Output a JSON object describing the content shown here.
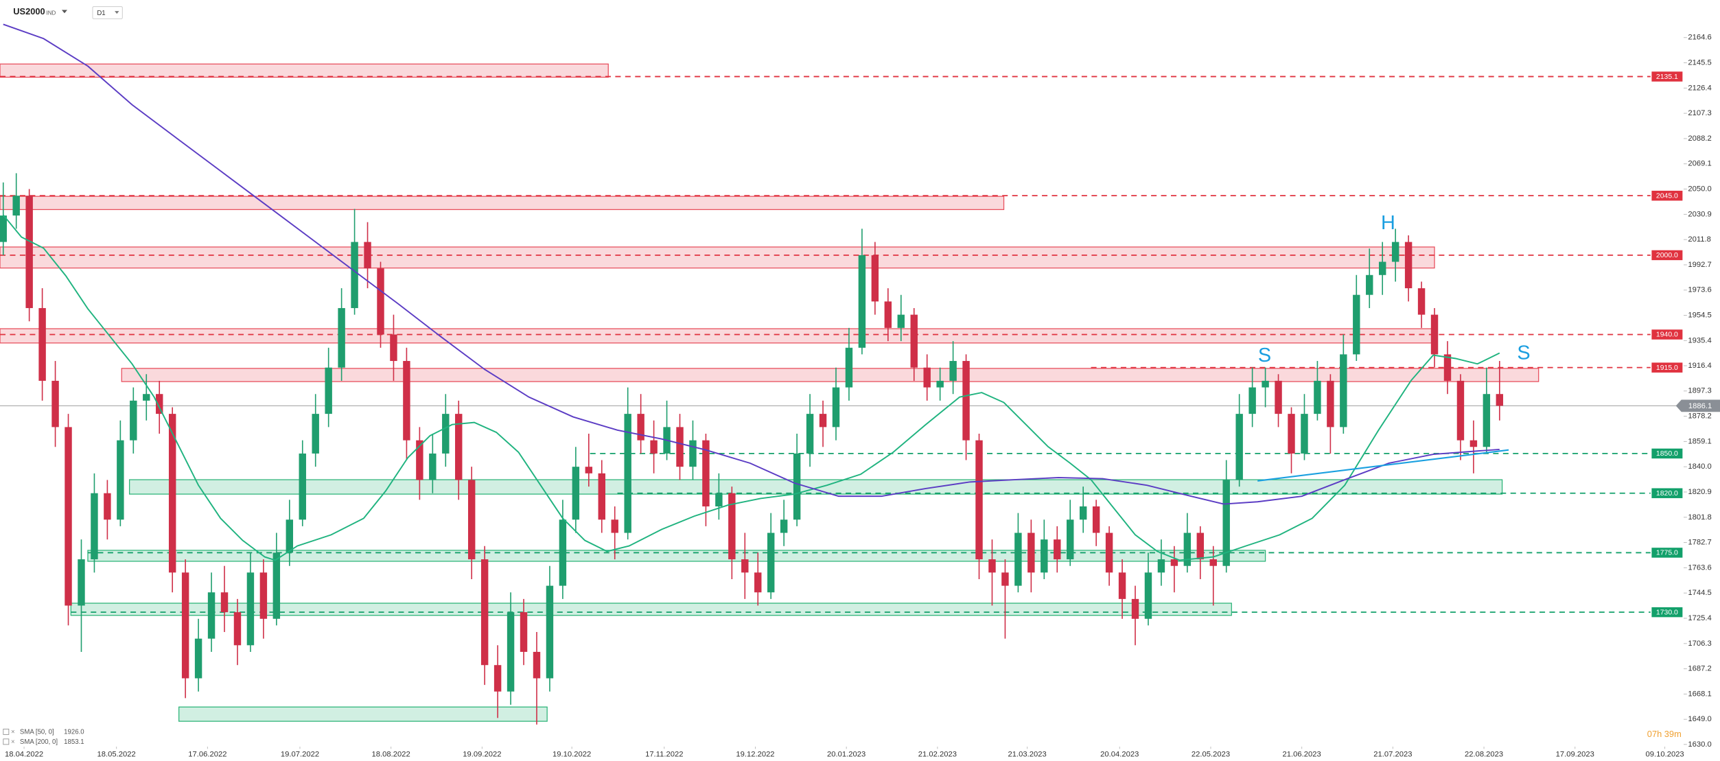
{
  "header": {
    "symbol": "US2000",
    "market": "IND",
    "timeframe": "D1"
  },
  "chart_data": {
    "type": "candlestick",
    "xlim": [
      -0.25,
      129.4
    ],
    "xticks": [
      {
        "value": 1.6,
        "label": "18.04.2022"
      },
      {
        "value": 8.7,
        "label": "18.05.2022"
      },
      {
        "value": 15.7,
        "label": "17.06.2022"
      },
      {
        "value": 22.8,
        "label": "19.07.2022"
      },
      {
        "value": 29.8,
        "label": "18.08.2022"
      },
      {
        "value": 36.8,
        "label": "19.09.2022"
      },
      {
        "value": 43.7,
        "label": "19.10.2022"
      },
      {
        "value": 50.8,
        "label": "17.11.2022"
      },
      {
        "value": 57.8,
        "label": "19.12.2022"
      },
      {
        "value": 64.8,
        "label": "20.01.2023"
      },
      {
        "value": 71.8,
        "label": "21.02.2023"
      },
      {
        "value": 78.7,
        "label": "21.03.2023"
      },
      {
        "value": 85.8,
        "label": "20.04.2023"
      },
      {
        "value": 92.8,
        "label": "22.05.2023"
      },
      {
        "value": 99.8,
        "label": "21.06.2023"
      },
      {
        "value": 106.8,
        "label": "21.07.2023"
      },
      {
        "value": 113.8,
        "label": "22.08.2023"
      },
      {
        "value": 120.8,
        "label": "17.09.2023"
      },
      {
        "value": 127.7,
        "label": "09.10.2023"
      }
    ],
    "ylim": [
      1628.3,
      2193.0
    ],
    "yticks": [
      {
        "value": 1630,
        "label": "1630.0"
      },
      {
        "value": 1649,
        "label": "1649.0"
      },
      1668.1,
      1687.2,
      1706.3,
      1725.4,
      1744.5,
      1763.6,
      1782.7,
      1801.8,
      1820.9,
      {
        "value": 1840,
        "label": "1840.0"
      },
      1859.1,
      1878.2,
      1897.3,
      1916.4,
      1935.4,
      1954.5,
      1973.6,
      1992.7,
      2011.8,
      2030.9,
      {
        "value": 2050,
        "label": "2050.0"
      },
      2069.1,
      2088.2,
      2107.3,
      2126.4,
      2145.5,
      2164.6
    ],
    "colors": {
      "up": "#1f9e6e",
      "down": "#cf2f48"
    },
    "candles": [
      [
        2010,
        2055,
        2000,
        2030
      ],
      [
        2030,
        2062,
        2020,
        2045
      ],
      [
        2045,
        2050,
        1950,
        1960
      ],
      [
        1960,
        1975,
        1890,
        1905
      ],
      [
        1905,
        1920,
        1855,
        1870
      ],
      [
        1870,
        1880,
        1720,
        1735
      ],
      [
        1735,
        1785,
        1700,
        1770
      ],
      [
        1770,
        1835,
        1760,
        1820
      ],
      [
        1820,
        1830,
        1785,
        1800
      ],
      [
        1800,
        1875,
        1795,
        1860
      ],
      [
        1860,
        1900,
        1850,
        1890
      ],
      [
        1890,
        1910,
        1875,
        1895
      ],
      [
        1895,
        1905,
        1865,
        1880
      ],
      [
        1880,
        1885,
        1745,
        1760
      ],
      [
        1760,
        1770,
        1665,
        1680
      ],
      [
        1680,
        1725,
        1670,
        1710
      ],
      [
        1710,
        1760,
        1700,
        1745
      ],
      [
        1745,
        1765,
        1715,
        1730
      ],
      [
        1730,
        1740,
        1690,
        1705
      ],
      [
        1705,
        1775,
        1700,
        1760
      ],
      [
        1760,
        1770,
        1710,
        1725
      ],
      [
        1725,
        1790,
        1720,
        1775
      ],
      [
        1775,
        1815,
        1765,
        1800
      ],
      [
        1800,
        1860,
        1795,
        1850
      ],
      [
        1850,
        1895,
        1840,
        1880
      ],
      [
        1880,
        1930,
        1870,
        1915
      ],
      [
        1915,
        1975,
        1905,
        1960
      ],
      [
        1960,
        2035,
        1955,
        2010
      ],
      [
        2010,
        2025,
        1975,
        1990
      ],
      [
        1990,
        1995,
        1930,
        1940
      ],
      [
        1940,
        1955,
        1905,
        1920
      ],
      [
        1920,
        1930,
        1845,
        1860
      ],
      [
        1860,
        1870,
        1815,
        1830
      ],
      [
        1830,
        1865,
        1820,
        1850
      ],
      [
        1850,
        1895,
        1840,
        1880
      ],
      [
        1880,
        1890,
        1815,
        1830
      ],
      [
        1830,
        1840,
        1755,
        1770
      ],
      [
        1770,
        1780,
        1675,
        1690
      ],
      [
        1690,
        1705,
        1650,
        1670
      ],
      [
        1670,
        1745,
        1660,
        1730
      ],
      [
        1730,
        1740,
        1690,
        1700
      ],
      [
        1700,
        1715,
        1645,
        1680
      ],
      [
        1680,
        1765,
        1670,
        1750
      ],
      [
        1750,
        1815,
        1740,
        1800
      ],
      [
        1800,
        1855,
        1790,
        1840
      ],
      [
        1840,
        1865,
        1825,
        1835
      ],
      [
        1835,
        1845,
        1790,
        1800
      ],
      [
        1800,
        1810,
        1770,
        1790
      ],
      [
        1790,
        1900,
        1785,
        1880
      ],
      [
        1880,
        1895,
        1850,
        1860
      ],
      [
        1860,
        1875,
        1835,
        1850
      ],
      [
        1850,
        1890,
        1845,
        1870
      ],
      [
        1870,
        1880,
        1830,
        1840
      ],
      [
        1840,
        1875,
        1830,
        1860
      ],
      [
        1860,
        1865,
        1795,
        1810
      ],
      [
        1810,
        1835,
        1800,
        1820
      ],
      [
        1820,
        1825,
        1755,
        1770
      ],
      [
        1770,
        1790,
        1740,
        1760
      ],
      [
        1760,
        1775,
        1735,
        1745
      ],
      [
        1745,
        1805,
        1740,
        1790
      ],
      [
        1790,
        1815,
        1780,
        1800
      ],
      [
        1800,
        1865,
        1795,
        1850
      ],
      [
        1850,
        1895,
        1840,
        1880
      ],
      [
        1880,
        1890,
        1855,
        1870
      ],
      [
        1870,
        1915,
        1860,
        1900
      ],
      [
        1900,
        1945,
        1890,
        1930
      ],
      [
        1930,
        2020,
        1925,
        2000
      ],
      [
        2000,
        2010,
        1955,
        1965
      ],
      [
        1965,
        1975,
        1935,
        1945
      ],
      [
        1945,
        1970,
        1935,
        1955
      ],
      [
        1955,
        1960,
        1905,
        1915
      ],
      [
        1915,
        1925,
        1890,
        1900
      ],
      [
        1900,
        1915,
        1890,
        1905
      ],
      [
        1905,
        1935,
        1895,
        1920
      ],
      [
        1920,
        1925,
        1845,
        1860
      ],
      [
        1860,
        1865,
        1755,
        1770
      ],
      [
        1770,
        1785,
        1735,
        1760
      ],
      [
        1760,
        1770,
        1710,
        1750
      ],
      [
        1750,
        1805,
        1745,
        1790
      ],
      [
        1790,
        1800,
        1745,
        1760
      ],
      [
        1760,
        1800,
        1755,
        1785
      ],
      [
        1785,
        1795,
        1760,
        1770
      ],
      [
        1770,
        1815,
        1765,
        1800
      ],
      [
        1800,
        1825,
        1790,
        1810
      ],
      [
        1810,
        1815,
        1780,
        1790
      ],
      [
        1790,
        1795,
        1750,
        1760
      ],
      [
        1760,
        1770,
        1725,
        1740
      ],
      [
        1740,
        1750,
        1705,
        1725
      ],
      [
        1725,
        1775,
        1720,
        1760
      ],
      [
        1760,
        1785,
        1750,
        1770
      ],
      [
        1770,
        1780,
        1745,
        1765
      ],
      [
        1765,
        1805,
        1760,
        1790
      ],
      [
        1790,
        1795,
        1755,
        1770
      ],
      [
        1770,
        1780,
        1735,
        1765
      ],
      [
        1765,
        1845,
        1760,
        1830
      ],
      [
        1830,
        1895,
        1825,
        1880
      ],
      [
        1880,
        1915,
        1870,
        1900
      ],
      [
        1900,
        1915,
        1885,
        1905
      ],
      [
        1905,
        1910,
        1870,
        1880
      ],
      [
        1880,
        1885,
        1835,
        1850
      ],
      [
        1850,
        1895,
        1845,
        1880
      ],
      [
        1880,
        1920,
        1875,
        1905
      ],
      [
        1905,
        1910,
        1850,
        1870
      ],
      [
        1870,
        1940,
        1865,
        1925
      ],
      [
        1925,
        1985,
        1920,
        1970
      ],
      [
        1970,
        2005,
        1960,
        1985
      ],
      [
        1985,
        2010,
        1970,
        1995
      ],
      [
        1995,
        2020,
        1980,
        2010
      ],
      [
        2010,
        2015,
        1965,
        1975
      ],
      [
        1975,
        1980,
        1945,
        1955
      ],
      [
        1955,
        1960,
        1915,
        1925
      ],
      [
        1925,
        1935,
        1895,
        1905
      ],
      [
        1905,
        1910,
        1845,
        1860
      ],
      [
        1860,
        1875,
        1835,
        1855
      ],
      [
        1855,
        1915,
        1850,
        1895
      ],
      [
        1895,
        1920,
        1875,
        1886.1
      ]
    ],
    "sma": [
      {
        "name": "SMA [50, 0]",
        "color": "#1fb37f",
        "last": {
          "value": 1926,
          "label": "1926.0"
        },
        "x": [
          0,
          1.4,
          3.1,
          4.8,
          6.5,
          8.2,
          9.9,
          11.6,
          13.3,
          15.0,
          16.7,
          18.4,
          20.1,
          20.9,
          22.6,
          25.2,
          27.7,
          29.4,
          31.1,
          32.8,
          34.5,
          36.2,
          37.9,
          39.6,
          41.3,
          43.0,
          44.7,
          46.4,
          48.1,
          50.6,
          53.1,
          55.7,
          58.2,
          60.8,
          63.3,
          65.9,
          68.4,
          70.9,
          73.5,
          75.2,
          76.9,
          78.6,
          80.3,
          82.0,
          83.6,
          85.3,
          87.0,
          88.7,
          90.4,
          93.0,
          95.5,
          98.1,
          100.6,
          103.1,
          105.7,
          108.2,
          109.9,
          111.6,
          113.3,
          115.0
        ],
        "values": [
          2030.4,
          2013.7,
          2005.3,
          1984.5,
          1959.5,
          1938.6,
          1917.8,
          1892.7,
          1859.4,
          1826.0,
          1801.0,
          1784.3,
          1771.8,
          1769.3,
          1780.1,
          1788.5,
          1801.0,
          1821.8,
          1846.9,
          1863.5,
          1871.9,
          1873.5,
          1866.0,
          1851.0,
          1826.0,
          1801.0,
          1784.3,
          1776.0,
          1780.1,
          1792.6,
          1802.6,
          1811.0,
          1816.0,
          1819.3,
          1826.0,
          1834.3,
          1851.0,
          1871.9,
          1892.7,
          1896.1,
          1888.6,
          1871.9,
          1855.2,
          1842.7,
          1830.2,
          1809.3,
          1788.5,
          1776.0,
          1769.3,
          1771.8,
          1780.1,
          1788.5,
          1801.0,
          1826.0,
          1867.7,
          1905.2,
          1924.4,
          1921.9,
          1917.8,
          1926.0
        ]
      },
      {
        "name": "SMA [200, 0]",
        "color": "#5b3cc4",
        "last": {
          "value": 1853.1,
          "label": "1853.1"
        },
        "x": [
          0,
          3.1,
          6.5,
          9.9,
          13.3,
          16.7,
          20.1,
          23.5,
          26.9,
          30.3,
          33.6,
          37.0,
          40.4,
          43.8,
          47.2,
          50.6,
          54.0,
          57.4,
          60.8,
          64.2,
          67.5,
          70.9,
          74.3,
          77.7,
          81.1,
          84.5,
          87.9,
          91.3,
          93.8,
          96.4,
          99.8,
          103.1,
          106.5,
          109.9,
          113.3,
          115.0
        ],
        "values": [
          2174.6,
          2163.8,
          2143.0,
          2113.8,
          2088.7,
          2063.7,
          2038.7,
          2013.7,
          1988.6,
          1963.6,
          1938.6,
          1913.6,
          1892.7,
          1877.7,
          1867.7,
          1861.0,
          1852.7,
          1842.7,
          1827.7,
          1817.7,
          1817.7,
          1823.5,
          1828.5,
          1830.2,
          1831.8,
          1831.0,
          1826.0,
          1817.7,
          1811.8,
          1813.5,
          1817.7,
          1830.2,
          1842.7,
          1849.4,
          1851.9,
          1853.1
        ]
      }
    ],
    "trendline": {
      "x": [
        96.4,
        115.7
      ],
      "values": [
        1829.3,
        1852.7
      ],
      "color": "#1aa0e0"
    },
    "zones": [
      {
        "x": [
          -0.25,
          46.5
        ],
        "range": [
          2134.6,
          2144.6
        ],
        "color": "#e8505e"
      },
      {
        "x": [
          -0.25,
          76.9
        ],
        "range": [
          2034.5,
          2044.5
        ],
        "color": "#e8505e"
      },
      {
        "x": [
          -0.25,
          110.0
        ],
        "range": [
          1990.3,
          2006.2
        ],
        "color": "#e8505e"
      },
      {
        "x": [
          -0.25,
          110.0
        ],
        "range": [
          1933.6,
          1944.4
        ],
        "color": "#e8505e"
      },
      {
        "x": [
          9.1,
          118.0
        ],
        "range": [
          1904.4,
          1914.4
        ],
        "color": "#e8505e"
      },
      {
        "x": [
          9.7,
          115.2
        ],
        "range": [
          1819.3,
          1830.2
        ],
        "color": "#2fb57a"
      },
      {
        "x": [
          6.5,
          97.0
        ],
        "range": [
          1768.5,
          1776.8
        ],
        "color": "#2fb57a"
      },
      {
        "x": [
          5.2,
          94.4
        ],
        "range": [
          1727.6,
          1736.8
        ],
        "color": "#2fb57a"
      },
      {
        "x": [
          13.5,
          41.8
        ],
        "range": [
          1647.5,
          1658.3
        ],
        "color": "#2fb57a"
      }
    ],
    "levels": [
      {
        "price": 2135.1,
        "from": -0.25,
        "color": "#e0323f"
      },
      {
        "price": 2045,
        "label": "2045.0",
        "from": -0.25,
        "color": "#e0323f"
      },
      {
        "price": 2000,
        "label": "2000.0",
        "from": -0.25,
        "color": "#e0323f"
      },
      {
        "price": 1940,
        "label": "1940.0",
        "from": -0.25,
        "color": "#e0323f"
      },
      {
        "price": 1915,
        "label": "1915.0",
        "from": 83.6,
        "color": "#e0323f"
      },
      {
        "price": 1850,
        "label": "1850.0",
        "from": 45.1,
        "color": "#12a06a"
      },
      {
        "price": 1820,
        "label": "1820.0",
        "from": 47.2,
        "color": "#12a06a"
      },
      {
        "price": 1775,
        "label": "1775.0",
        "from": 6.5,
        "color": "#12a06a"
      },
      {
        "price": 1730,
        "label": "1730.0",
        "from": 5.2,
        "color": "#12a06a"
      }
    ],
    "last_price": {
      "value": 1886.1,
      "label": "1886.1"
    },
    "annotations": [
      "H",
      "S",
      "S"
    ],
    "countdown": "07h 39m"
  }
}
